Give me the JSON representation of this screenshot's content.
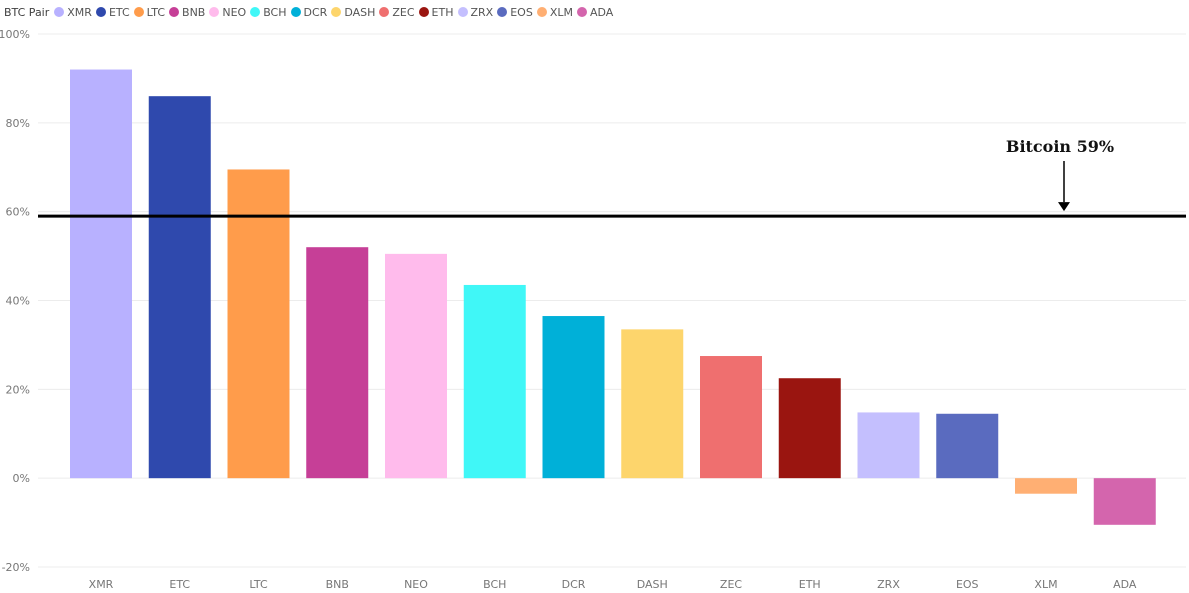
{
  "legend": {
    "title": "BTC Pair",
    "placement": "top-left"
  },
  "chart_data": {
    "type": "bar",
    "categories": [
      "XMR",
      "ETC",
      "LTC",
      "BNB",
      "NEO",
      "BCH",
      "DCR",
      "DASH",
      "ZEC",
      "ETH",
      "ZRX",
      "EOS",
      "XLM",
      "ADA"
    ],
    "values": [
      92,
      86,
      69.5,
      52,
      50.5,
      43.5,
      36.5,
      33.5,
      27.5,
      22.5,
      14.8,
      14.5,
      -3.5,
      -10.5
    ],
    "colors": [
      "#b8b1ff",
      "#2f49ad",
      "#ff9c4b",
      "#c63f97",
      "#ffbbec",
      "#40f7f7",
      "#00b0d8",
      "#fdd56c",
      "#ef6f6f",
      "#9a1510",
      "#c4bffe",
      "#5a6bbf",
      "#ffaf73",
      "#d465ad"
    ],
    "ylim": [
      -20,
      100
    ],
    "yticks": [
      -20,
      0,
      20,
      40,
      60,
      80,
      100
    ],
    "ytick_labels": [
      "-20%",
      "0%",
      "20%",
      "40%",
      "60%",
      "80%",
      "100%"
    ],
    "grid": true,
    "reference_line": {
      "value": 59,
      "label": "Bitcoin 59%"
    },
    "title": "",
    "xlabel": "",
    "ylabel": ""
  }
}
